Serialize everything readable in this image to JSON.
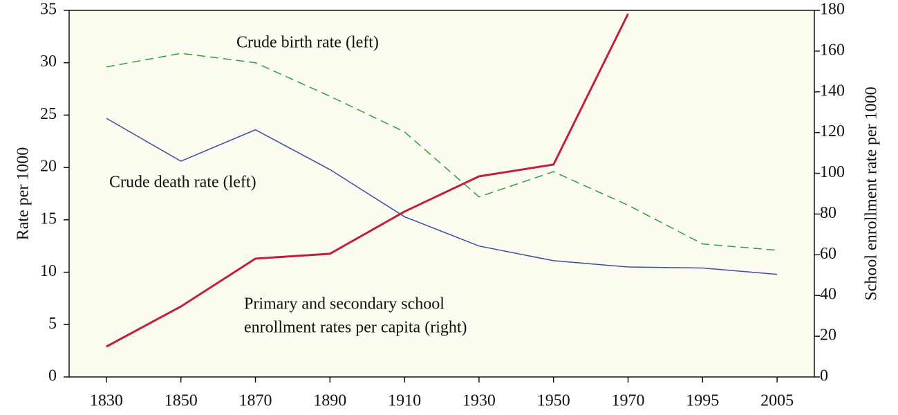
{
  "chart_data": {
    "type": "line",
    "categories": [
      "1830",
      "1850",
      "1870",
      "1890",
      "1910",
      "1930",
      "1950",
      "1970",
      "1995",
      "2005"
    ],
    "ylabel": "Rate per 1000",
    "y2label": "School enrollment rate per 1000",
    "ylim": [
      0,
      35
    ],
    "yticks": [
      0,
      5,
      10,
      15,
      20,
      25,
      30,
      35
    ],
    "y2lim": [
      0,
      180
    ],
    "y2ticks": [
      0,
      20,
      40,
      60,
      80,
      100,
      120,
      140,
      160,
      180
    ],
    "background": "#fbfbef",
    "series": [
      {
        "name": "Crude birth rate (left)",
        "color": "#2e9e3e",
        "style": "dashed",
        "width": 1.5,
        "values": [
          29.6,
          30.9,
          30.0,
          26.8,
          23.4,
          17.2,
          19.6,
          16.4,
          12.7,
          12.1
        ]
      },
      {
        "name": "Crude death rate (left)",
        "color": "#3a4fa0",
        "style": "solid",
        "width": 1.5,
        "values": [
          24.7,
          20.6,
          23.6,
          19.8,
          15.3,
          12.5,
          11.1,
          10.5,
          10.4,
          9.8
        ]
      },
      {
        "name": "Primary and secondary school enrollment rates per capita (right)",
        "color": "#c0213a",
        "style": "solid",
        "width": 3,
        "axis": "y2",
        "values": [
          14.9,
          34.6,
          58.1,
          60.5,
          81.2,
          98.5,
          104.3,
          178.3,
          null,
          null
        ]
      }
    ],
    "annotations": [
      "Crude birth rate (left)",
      "Crude death rate (left)",
      "Primary and secondary school",
      "enrollment rates per capita (right)"
    ]
  }
}
